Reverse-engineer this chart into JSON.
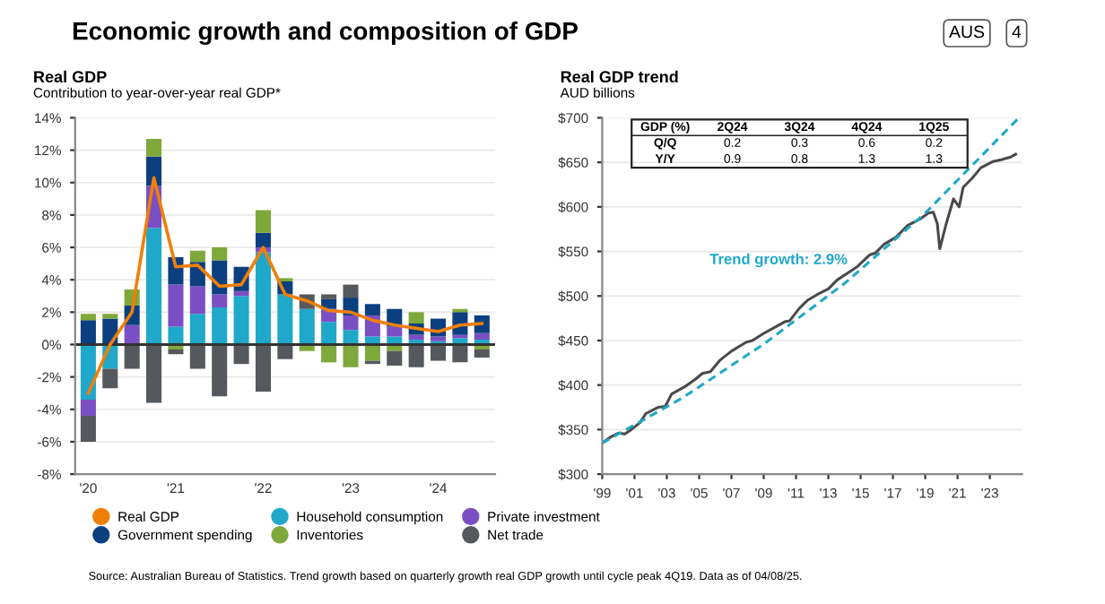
{
  "chart_data": [
    {
      "type": "bar",
      "stacked": true,
      "title": "Real GDP",
      "subtitle": "Contribution to year-over-year real GDP*",
      "categories": [
        "'20",
        null,
        null,
        null,
        "'21",
        null,
        null,
        null,
        "'22",
        null,
        null,
        null,
        "'23",
        null,
        null,
        null,
        "'24",
        null,
        null
      ],
      "series": [
        {
          "name": "Real GDP",
          "type": "line",
          "color": "#f07f09",
          "values": [
            -3.0,
            0.0,
            2.0,
            10.3,
            4.8,
            4.9,
            3.6,
            3.7,
            6.0,
            3.1,
            2.7,
            2.1,
            2.0,
            1.5,
            1.2,
            1.0,
            0.8,
            1.2,
            1.3
          ]
        },
        {
          "name": "Household consumption",
          "color": "#1fa8c9",
          "values": [
            -3.4,
            -1.5,
            0,
            7.2,
            1.1,
            1.9,
            2.3,
            3.0,
            5.7,
            3.1,
            2.2,
            1.4,
            0.9,
            0.5,
            0.5,
            0.3,
            0.2,
            0.4,
            0.3
          ]
        },
        {
          "name": "Private investment",
          "color": "#7b4fc4",
          "values": [
            -1.0,
            0,
            1.2,
            2.6,
            2.6,
            1.7,
            0.8,
            0.3,
            0.3,
            0,
            0,
            0.8,
            0.9,
            1.3,
            0.6,
            0.3,
            0.3,
            0.2,
            0.4
          ]
        },
        {
          "name": "Government spending",
          "color": "#0b3f7f",
          "values": [
            1.5,
            1.6,
            1.2,
            1.8,
            1.7,
            1.5,
            2.1,
            1.5,
            0.9,
            0.8,
            0,
            0.6,
            1.1,
            0.7,
            1.1,
            0.7,
            1.1,
            1.4,
            1.1
          ]
        },
        {
          "name": "Inventories",
          "color": "#7ea83a",
          "values": [
            0.4,
            0.3,
            1.0,
            1.1,
            -0.3,
            0.7,
            0.8,
            0,
            1.4,
            0.2,
            -0.4,
            -1.1,
            -1.4,
            -1.0,
            -0.4,
            0.7,
            0,
            0.2,
            -0.3
          ]
        },
        {
          "name": "Net trade",
          "color": "#55595d",
          "values": [
            -1.6,
            -1.2,
            -1.5,
            -3.6,
            -0.3,
            -1.5,
            -3.2,
            -1.2,
            -2.9,
            -0.9,
            0.9,
            0.3,
            0.8,
            -0.2,
            -0.9,
            -1.4,
            -1.0,
            -1.1,
            -0.5
          ]
        }
      ],
      "ylim": [
        -8,
        14
      ],
      "yticks": [
        {
          "value": -8,
          "label": "-8%"
        },
        {
          "value": -6,
          "label": "-6%"
        },
        {
          "value": -4,
          "label": "-4%"
        },
        {
          "value": -2,
          "label": "-2%"
        },
        {
          "value": 0,
          "label": "0%"
        },
        {
          "value": 2,
          "label": "2%"
        },
        {
          "value": 4,
          "label": "4%"
        },
        {
          "value": 6,
          "label": "6%"
        },
        {
          "value": 8,
          "label": "8%"
        },
        {
          "value": 10,
          "label": "10%"
        },
        {
          "value": 12,
          "label": "12%"
        },
        {
          "value": 14,
          "label": "14%"
        }
      ],
      "ref_lines": [
        {
          "axis": "y",
          "value": 0,
          "color": "#333333"
        }
      ],
      "grid": "y",
      "legend": "bottom",
      "annotations": [
        "Economic growth and composition of GDP",
        "AUS",
        "4",
        "Source: Australian Bureau of Statistics. Trend growth based on quarterly growth real GDP growth until cycle peak 4Q19. Data as of 04/08/25."
      ]
    },
    {
      "type": "line",
      "title": "Real GDP trend",
      "subtitle": "AUD billions",
      "series": [
        {
          "color": "#4a4a4a",
          "line_style": "solid",
          "x": [
            1999.0,
            1999.55,
            2000.0,
            2000.4,
            2000.8,
            2001.35,
            2001.7,
            2002.45,
            2002.9,
            2003.3,
            2004.1,
            2004.8,
            2005.2,
            2005.7,
            2006.3,
            2007.0,
            2007.9,
            2008.3,
            2009.0,
            2009.9,
            2010.3,
            2010.6,
            2011.2,
            2011.7,
            2012.45,
            2013.0,
            2013.55,
            2014.3,
            2014.8,
            2015.55,
            2015.9,
            2016.45,
            2017.2,
            2017.9,
            2018.65,
            2019.2,
            2019.5,
            2019.75,
            2019.9,
            2020.3,
            2020.75,
            2021.1,
            2021.35,
            2021.9,
            2022.45,
            2023.2,
            2023.7,
            2024.3,
            2024.6
          ],
          "values": [
            335,
            342,
            346,
            345,
            350,
            358,
            368,
            375,
            376,
            390,
            398,
            407,
            413,
            415,
            428,
            438,
            448,
            450,
            458,
            467,
            471,
            472,
            486,
            495,
            503,
            508,
            518,
            527,
            533,
            546,
            548,
            558,
            566,
            579,
            586,
            593,
            594,
            581,
            553,
            581,
            609,
            600,
            622,
            632,
            644,
            651,
            653,
            656,
            659
          ]
        },
        {
          "color": "#1fa8c9",
          "line_style": "dashed",
          "x": [
            1999,
            2004,
            2009,
            2014,
            2019,
            2024.8
          ],
          "values": [
            335,
            386,
            446,
            514,
            593,
            700
          ]
        }
      ],
      "xlim": [
        1999,
        2025
      ],
      "xticks": [
        {
          "value": 1999,
          "label": "'99"
        },
        {
          "value": 2001,
          "label": "'01"
        },
        {
          "value": 2003,
          "label": "'03"
        },
        {
          "value": 2005,
          "label": "'05"
        },
        {
          "value": 2007,
          "label": "'07"
        },
        {
          "value": 2009,
          "label": "'09"
        },
        {
          "value": 2011,
          "label": "'11"
        },
        {
          "value": 2013,
          "label": "'13"
        },
        {
          "value": 2015,
          "label": "'15"
        },
        {
          "value": 2017,
          "label": "'17"
        },
        {
          "value": 2019,
          "label": "'19"
        },
        {
          "value": 2021,
          "label": "'21"
        },
        {
          "value": 2023,
          "label": "'23"
        }
      ],
      "ylim": [
        300,
        700
      ],
      "yticks": [
        {
          "value": 300,
          "label": "$300"
        },
        {
          "value": 350,
          "label": "$350"
        },
        {
          "value": 400,
          "label": "$400"
        },
        {
          "value": 450,
          "label": "$450"
        },
        {
          "value": 500,
          "label": "$500"
        },
        {
          "value": 550,
          "label": "$550"
        },
        {
          "value": 600,
          "label": "$600"
        },
        {
          "value": 650,
          "label": "$650"
        },
        {
          "value": 700,
          "label": "$700"
        }
      ],
      "grid": "y",
      "annotations": [
        "Trend growth: 2.9%",
        "GDP (%)",
        "2Q24",
        "3Q24",
        "4Q24",
        "1Q25",
        "Q/Q",
        "0.2",
        "0.3",
        "0.6",
        "0.2",
        "Y/Y",
        "0.9",
        "0.8",
        "1.3",
        "1.3"
      ]
    }
  ]
}
